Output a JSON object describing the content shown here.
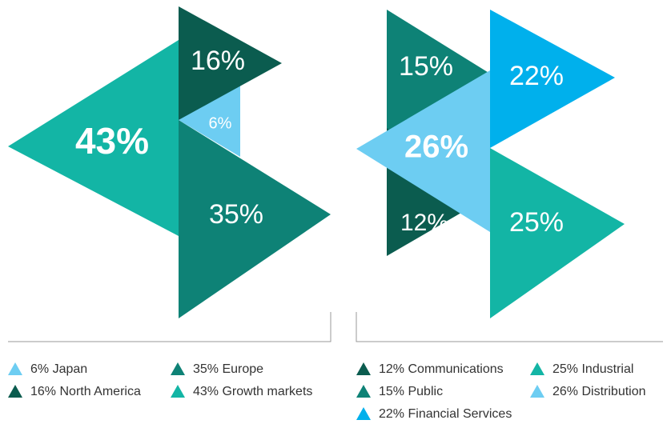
{
  "chart_data": [
    {
      "type": "triangle",
      "categories": [
        "Japan",
        "Europe",
        "North America",
        "Growth markets"
      ],
      "values": [
        6,
        35,
        16,
        43
      ],
      "value_labels": [
        "6%",
        "35%",
        "16%",
        "43%"
      ],
      "colors": [
        "#6dcdf2",
        "#0e8276",
        "#0b5c4f",
        "#13b5a5"
      ]
    },
    {
      "type": "triangle",
      "categories": [
        "Communications",
        "Industrial",
        "Public",
        "Distribution",
        "Financial Services"
      ],
      "values": [
        12,
        25,
        15,
        26,
        22
      ],
      "value_labels": [
        "12%",
        "25%",
        "15%",
        "26%",
        "22%"
      ],
      "colors": [
        "#0b5c4f",
        "#13b5a5",
        "#0e8276",
        "#6dcdf2",
        "#00b0ec"
      ]
    }
  ]
}
